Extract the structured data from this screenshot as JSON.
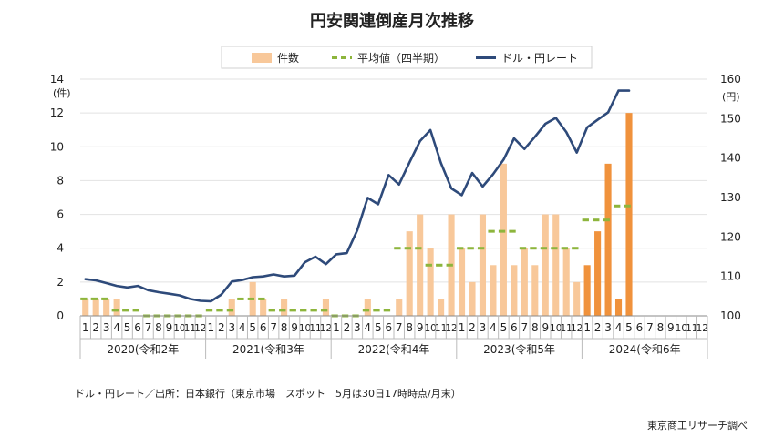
{
  "chart_data": {
    "type": "bar",
    "title": "円安関連倒産月次推移",
    "legend": {
      "placement": "top",
      "items": [
        {
          "label": "件数",
          "kind": "bar"
        },
        {
          "label": "平均値（四半期）",
          "kind": "dash"
        },
        {
          "label": "ドル・円レート",
          "kind": "line"
        }
      ]
    },
    "left_axis": {
      "unit": "(件)",
      "range": [
        0,
        14
      ],
      "ticks": [
        0,
        2,
        4,
        6,
        8,
        10,
        12,
        14
      ]
    },
    "right_axis": {
      "unit": "(円)",
      "range": [
        100,
        160
      ],
      "ticks": [
        100,
        110,
        120,
        130,
        140,
        150,
        160
      ]
    },
    "month_labels": [
      "1",
      "2",
      "3",
      "4",
      "5",
      "6",
      "7",
      "8",
      "9",
      "10",
      "11",
      "12"
    ],
    "years": [
      {
        "label": "2020(令和2年",
        "months": 12
      },
      {
        "label": "2021(令和3年",
        "months": 12
      },
      {
        "label": "2022(令和4年",
        "months": 12
      },
      {
        "label": "2023(令和5年",
        "months": 12
      },
      {
        "label": "2024(令和6年",
        "months": 12
      }
    ],
    "series": [
      {
        "name": "件数",
        "values": [
          1,
          1,
          1,
          1,
          0,
          0,
          0,
          0,
          0,
          0,
          0,
          0,
          0,
          0,
          1,
          0,
          2,
          1,
          0,
          1,
          0,
          0,
          0,
          1,
          0,
          0,
          0,
          1,
          0,
          0,
          1,
          5,
          6,
          4,
          1,
          6,
          4,
          2,
          6,
          3,
          9,
          3,
          4,
          3,
          6,
          6,
          4,
          2,
          3,
          5,
          9,
          1,
          12
        ]
      },
      {
        "name": "平均値（四半期）",
        "values": [
          1,
          1,
          1,
          0.33,
          0.33,
          0.33,
          0,
          0,
          0,
          0,
          0,
          0,
          0.33,
          0.33,
          0.33,
          1,
          1,
          1,
          0.33,
          0.33,
          0.33,
          0.33,
          0.33,
          0.33,
          0,
          0,
          0,
          0.33,
          0.33,
          0.33,
          4,
          4,
          4,
          3,
          3,
          3,
          4,
          4,
          4,
          5,
          5,
          5,
          4,
          4,
          4,
          4,
          4,
          4,
          5.67,
          5.67,
          5.67,
          6.5,
          6.5
        ]
      },
      {
        "name": "ドル・円レート",
        "values": [
          109.3,
          109.0,
          108.3,
          107.6,
          107.2,
          107.6,
          106.5,
          106.0,
          105.6,
          105.2,
          104.3,
          103.8,
          103.7,
          105.4,
          108.7,
          109.1,
          109.8,
          110.0,
          110.5,
          110.0,
          110.2,
          113.6,
          115.0,
          113.1,
          115.6,
          115.9,
          121.7,
          129.9,
          128.3,
          135.7,
          133.3,
          138.9,
          144.3,
          147.1,
          138.8,
          132.3,
          130.6,
          136.2,
          132.8,
          135.9,
          139.6,
          145.0,
          142.3,
          145.4,
          148.7,
          150.2,
          146.6,
          141.4,
          147.8,
          149.7,
          151.6,
          157.1,
          157.1
        ]
      }
    ]
  },
  "footer": {
    "source": "ドル・円レート／出所：日本銀行（東京市場　スポット　5月は30日17時時点/月末）",
    "credit": "東京商工リサーチ調べ"
  }
}
